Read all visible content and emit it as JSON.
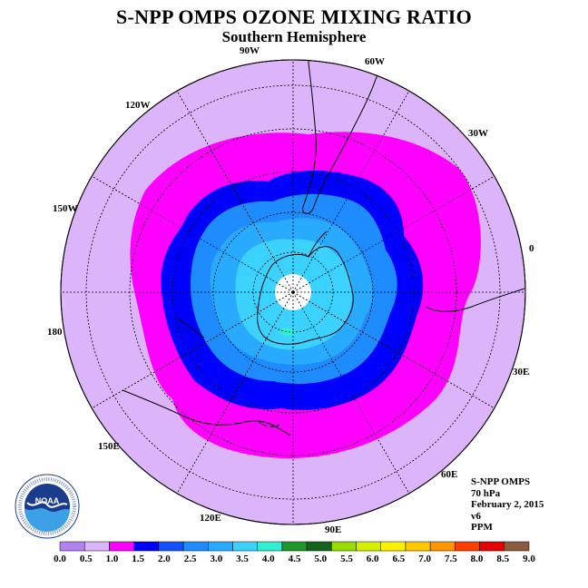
{
  "title": "S-NPP OMPS OZONE MIXING RATIO",
  "subtitle": "Southern Hemisphere",
  "longitude_labels": {
    "l90w": "90W",
    "l60w": "60W",
    "l120w": "120W",
    "l30w": "30W",
    "l150w": "150W",
    "l0": "0",
    "l180": "180",
    "l30e": "30E",
    "l150e": "150E",
    "l60e": "60E",
    "l120e": "120E",
    "l90e": "90E"
  },
  "info": {
    "instrument": "S-NPP OMPS",
    "level": "70 hPa",
    "date": "February 2, 2015",
    "version": "v6",
    "units": "PPM"
  },
  "logo": {
    "text": "NOAA"
  },
  "colorbar": {
    "ticks": [
      "0.0",
      "0.5",
      "1.0",
      "1.5",
      "2.0",
      "2.5",
      "3.0",
      "3.5",
      "4.0",
      "4.5",
      "5.0",
      "5.5",
      "6.0",
      "6.5",
      "7.0",
      "7.5",
      "8.0",
      "8.5",
      "9.0"
    ],
    "colors": [
      "#b482f0",
      "#dcb4fa",
      "#ff00ff",
      "#0000ff",
      "#1450ff",
      "#1e8cff",
      "#28aaff",
      "#3cd2ff",
      "#30f0d2",
      "#1e9628",
      "#14641e",
      "#96dc00",
      "#d2f000",
      "#fff000",
      "#ffc800",
      "#ff9600",
      "#ff3c00",
      "#e60000",
      "#8c5a3c"
    ]
  },
  "map_data": {
    "projection": "south-polar-stereographic",
    "field": "ozone mixing ratio",
    "contour_levels_shown": [
      0.5,
      1.0,
      1.5,
      2.0,
      2.5,
      3.0,
      3.5
    ]
  }
}
